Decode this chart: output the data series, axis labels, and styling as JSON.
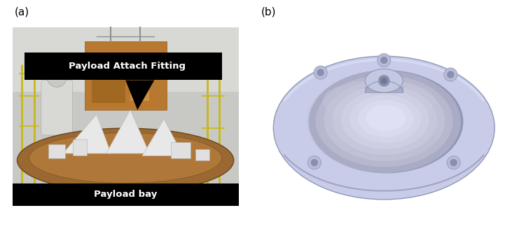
{
  "fig_width": 7.31,
  "fig_height": 3.27,
  "dpi": 100,
  "bg_color": "#ffffff",
  "label_a": "(a)",
  "label_b": "(b)",
  "label_fontsize": 11,
  "annotation_fitting": "Payload Attach Fitting",
  "annotation_bay": "Payload bay",
  "annotation_fontsize": 9.5,
  "annotation_bg": "#000000",
  "annotation_fg": "#ffffff",
  "rim_light": "#c8cce8",
  "rim_mid": "#b8bcd8",
  "rim_dark": "#a0a4c0",
  "bowl_light": "#b0b4d0",
  "bowl_mid": "#9498b8",
  "bowl_dark": "#7880a8",
  "knob_light": "#c4c8e0",
  "knob_dark": "#a8acc8",
  "hole_color": "#8890b0",
  "edge_color": "#9098b8"
}
